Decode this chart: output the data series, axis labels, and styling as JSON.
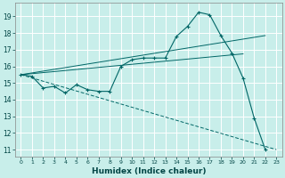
{
  "xlabel": "Humidex (Indice chaleur)",
  "background_color": "#c8eeea",
  "grid_color": "#ffffff",
  "line_color": "#006666",
  "xlim": [
    -0.5,
    23.5
  ],
  "ylim": [
    10.6,
    19.8
  ],
  "yticks": [
    11,
    12,
    13,
    14,
    15,
    16,
    17,
    18,
    19
  ],
  "xticks": [
    0,
    1,
    2,
    3,
    4,
    5,
    6,
    7,
    8,
    9,
    10,
    11,
    12,
    13,
    14,
    15,
    16,
    17,
    18,
    19,
    20,
    21,
    22,
    23
  ],
  "series1_x": [
    0,
    1,
    2,
    3,
    4,
    5,
    6,
    7,
    8,
    9,
    10,
    11,
    12,
    13,
    14,
    15,
    16,
    17,
    18,
    19,
    20,
    21,
    22
  ],
  "series1_y": [
    15.5,
    15.4,
    14.7,
    14.8,
    14.4,
    14.9,
    14.6,
    14.5,
    14.5,
    16.0,
    16.4,
    16.5,
    16.5,
    16.5,
    17.8,
    18.4,
    19.25,
    19.1,
    17.85,
    16.8,
    15.3,
    12.9,
    11.0
  ],
  "series2_x": [
    0,
    22
  ],
  "series2_y": [
    15.5,
    17.85
  ],
  "series3_x": [
    0,
    23
  ],
  "series3_y": [
    15.5,
    11.0
  ],
  "series4_x": [
    0,
    20
  ],
  "series4_y": [
    15.5,
    16.75
  ]
}
